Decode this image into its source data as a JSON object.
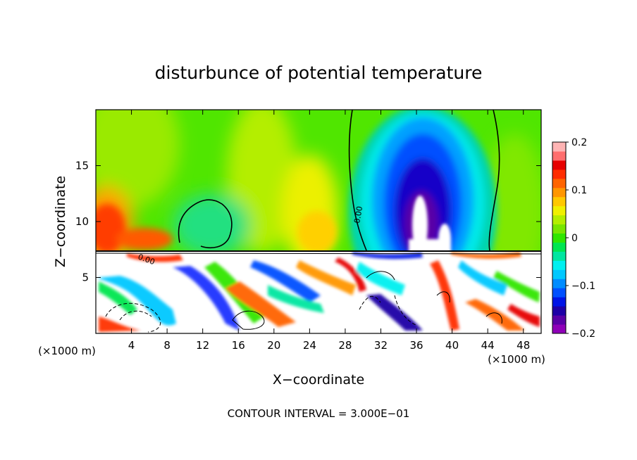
{
  "chart_data": {
    "type": "heatmap",
    "title": "disturbunce of potential temperature",
    "xlabel": "X−coordinate",
    "ylabel": "Z−coordinate",
    "x_unit": "(×1000 m)",
    "y_unit": "(×1000 m)",
    "xlim": [
      0,
      50
    ],
    "ylim": [
      0,
      20
    ],
    "x_ticks": [
      4,
      8,
      12,
      16,
      20,
      24,
      28,
      32,
      36,
      40,
      44,
      48
    ],
    "y_ticks": [
      5,
      10,
      15
    ],
    "colorbar": {
      "range": [
        -0.2,
        0.2
      ],
      "tick_values": [
        0.2,
        0.1,
        0,
        -0.1,
        -0.2
      ],
      "tick_labels": [
        "0.2",
        "0.1",
        "0",
        "−0.1",
        "−0.2"
      ],
      "colors": [
        "#8f00b8",
        "#5a00a6",
        "#1e00a6",
        "#0014e6",
        "#0050ff",
        "#008cff",
        "#00c8ff",
        "#00f0f0",
        "#00e6a0",
        "#00e650",
        "#30e600",
        "#78e600",
        "#b4ee00",
        "#f0f000",
        "#ffc800",
        "#ff9600",
        "#ff6400",
        "#ff2d00",
        "#e60000",
        "#ff6e6e",
        "#ffb4b4"
      ]
    },
    "contour_label": "0.00",
    "annotation": "CONTOUR INTERVAL = 3.000E−01"
  }
}
